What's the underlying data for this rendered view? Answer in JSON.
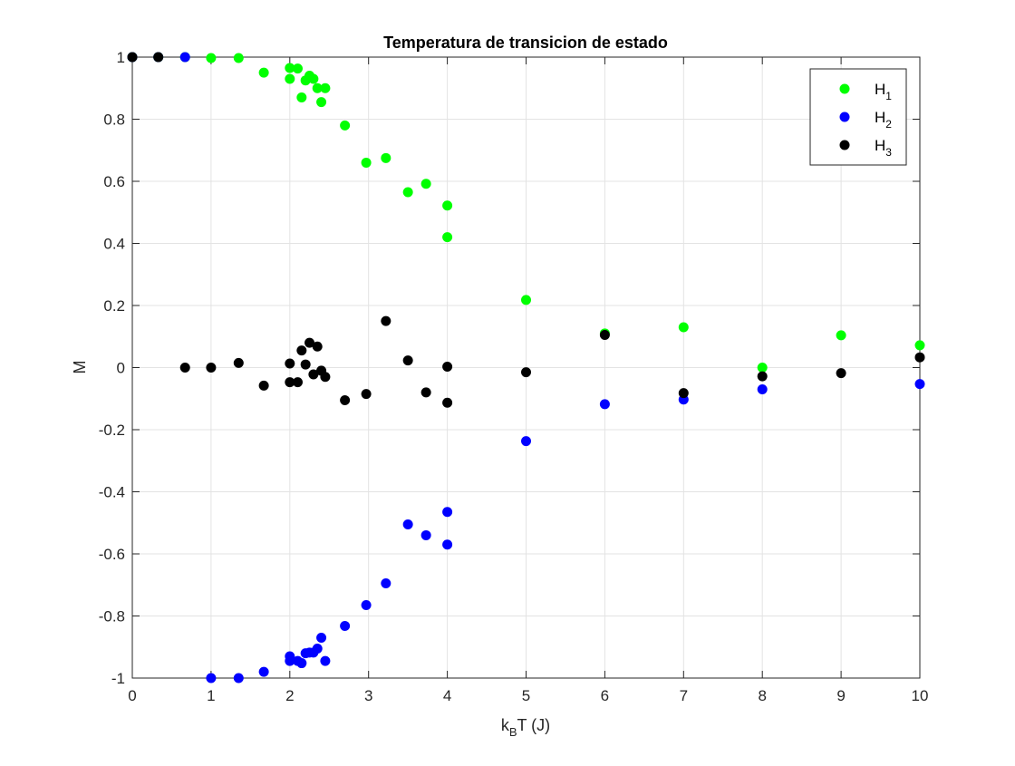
{
  "chart_data": {
    "type": "scatter",
    "title": "Temperatura de transicion de estado",
    "xlabel": {
      "main": "k",
      "sub": "B",
      "rest": "T (J)"
    },
    "ylabel": "M",
    "xlim": [
      0,
      10
    ],
    "ylim": [
      -1,
      1
    ],
    "x_ticks": [
      0,
      1,
      2,
      3,
      4,
      5,
      6,
      7,
      8,
      9,
      10
    ],
    "x_tick_labels": [
      "0",
      "1",
      "2",
      "3",
      "4",
      "5",
      "6",
      "7",
      "8",
      "9",
      "10"
    ],
    "y_ticks": [
      -1,
      -0.8,
      -0.6,
      -0.4,
      -0.2,
      0,
      0.2,
      0.4,
      0.6,
      0.8,
      1
    ],
    "y_tick_labels": [
      "-1",
      "-0.8",
      "-0.6",
      "-0.4",
      "-0.2",
      "0",
      "0.2",
      "0.4",
      "0.6",
      "0.8",
      "1"
    ],
    "grid": true,
    "legend_position": "top-right",
    "series": [
      {
        "name": "H1",
        "legend_main": "H",
        "legend_sub": "1",
        "color": "#00ff00",
        "points": [
          [
            0.0,
            1.0
          ],
          [
            0.33,
            1.0
          ],
          [
            0.67,
            1.0
          ],
          [
            1.0,
            0.997
          ],
          [
            1.35,
            0.997
          ],
          [
            1.67,
            0.95
          ],
          [
            2.0,
            0.965
          ],
          [
            2.0,
            0.93
          ],
          [
            2.1,
            0.963
          ],
          [
            2.15,
            0.87
          ],
          [
            2.2,
            0.925
          ],
          [
            2.25,
            0.94
          ],
          [
            2.3,
            0.93
          ],
          [
            2.35,
            0.9
          ],
          [
            2.4,
            0.855
          ],
          [
            2.45,
            0.9
          ],
          [
            2.7,
            0.78
          ],
          [
            2.97,
            0.66
          ],
          [
            3.22,
            0.675
          ],
          [
            3.5,
            0.565
          ],
          [
            3.73,
            0.592
          ],
          [
            4.0,
            0.522
          ],
          [
            4.0,
            0.42
          ],
          [
            5.0,
            0.218
          ],
          [
            6.0,
            0.11
          ],
          [
            7.0,
            0.13
          ],
          [
            8.0,
            0.0
          ],
          [
            9.0,
            0.104
          ],
          [
            10.0,
            0.072
          ]
        ]
      },
      {
        "name": "H2",
        "legend_main": "H",
        "legend_sub": "2",
        "color": "#0000ff",
        "points": [
          [
            0.0,
            1.0
          ],
          [
            0.33,
            1.0
          ],
          [
            0.67,
            1.0
          ],
          [
            1.0,
            -1.0
          ],
          [
            1.35,
            -1.0
          ],
          [
            1.67,
            -0.98
          ],
          [
            2.0,
            -0.945
          ],
          [
            2.0,
            -0.93
          ],
          [
            2.1,
            -0.945
          ],
          [
            2.15,
            -0.952
          ],
          [
            2.2,
            -0.92
          ],
          [
            2.25,
            -0.918
          ],
          [
            2.3,
            -0.918
          ],
          [
            2.35,
            -0.905
          ],
          [
            2.4,
            -0.87
          ],
          [
            2.45,
            -0.945
          ],
          [
            2.7,
            -0.832
          ],
          [
            2.97,
            -0.765
          ],
          [
            3.22,
            -0.695
          ],
          [
            3.5,
            -0.505
          ],
          [
            3.73,
            -0.54
          ],
          [
            4.0,
            -0.465
          ],
          [
            4.0,
            -0.57
          ],
          [
            5.0,
            -0.237
          ],
          [
            6.0,
            -0.118
          ],
          [
            7.0,
            -0.103
          ],
          [
            8.0,
            -0.07
          ],
          [
            10.0,
            -0.053
          ]
        ]
      },
      {
        "name": "H3",
        "legend_main": "H",
        "legend_sub": "3",
        "color": "#000000",
        "points": [
          [
            0.0,
            1.0
          ],
          [
            0.33,
            1.0
          ],
          [
            0.67,
            0.0
          ],
          [
            1.0,
            0.0
          ],
          [
            1.35,
            0.015
          ],
          [
            1.67,
            -0.058
          ],
          [
            2.0,
            0.013
          ],
          [
            2.0,
            -0.047
          ],
          [
            2.1,
            -0.047
          ],
          [
            2.15,
            0.055
          ],
          [
            2.2,
            0.01
          ],
          [
            2.25,
            0.08
          ],
          [
            2.3,
            -0.022
          ],
          [
            2.35,
            0.068
          ],
          [
            2.4,
            -0.01
          ],
          [
            2.45,
            -0.03
          ],
          [
            2.7,
            -0.105
          ],
          [
            2.97,
            -0.085
          ],
          [
            3.22,
            0.15
          ],
          [
            3.5,
            0.023
          ],
          [
            3.73,
            -0.08
          ],
          [
            4.0,
            0.003
          ],
          [
            4.0,
            -0.113
          ],
          [
            5.0,
            -0.015
          ],
          [
            6.0,
            0.105
          ],
          [
            7.0,
            -0.082
          ],
          [
            8.0,
            -0.028
          ],
          [
            9.0,
            -0.018
          ],
          [
            10.0,
            0.033
          ]
        ]
      }
    ]
  }
}
